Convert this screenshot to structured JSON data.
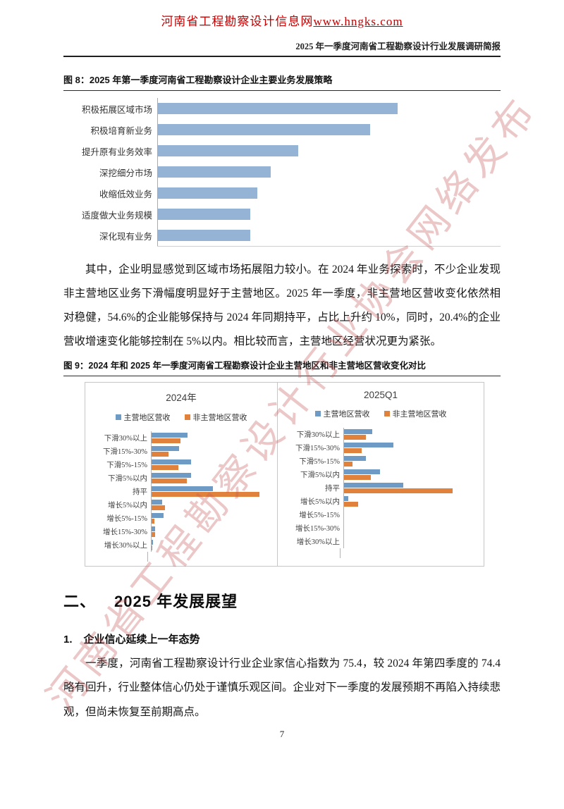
{
  "header": {
    "site_name": "河南省工程勘察设计信息网",
    "site_url": "www.hngks.com",
    "doc_title": "2025 年一季度河南省工程勘察设计行业发展调研简报"
  },
  "figure8": {
    "caption": "图 8：2025 年第一季度河南省工程勘察设计企业主要业务发展策略"
  },
  "figure9": {
    "caption": "图 9：2024 年和 2025 年一季度河南省工程勘察设计企业主营地区和非主营地区营收变化对比"
  },
  "paragraphs": {
    "p1": "其中，企业明显感觉到区域市场拓展阻力较小。在 2024 年业务探索时，不少企业发现非主营地区业务下滑幅度明显好于主营地区。2025 年一季度，非主营地区营收变化依然相对稳健，54.6%的企业能够保持与 2024 年同期持平，占比上升约 10%，同时，20.4%的企业营收增速变化能够控制在 5%以内。相比较而言，主营地区经营状况更为紧张。",
    "p2": "一季度，河南省工程勘察设计行业企业家信心指数为 75.4，较 2024 年第四季度的 74.4 略有回升，行业整体信心仍处于谨慎乐观区间。企业对下一季度的发展预期不再陷入持续悲观，但尚未恢复至前期高点。"
  },
  "section2": {
    "number": "二、",
    "title": "2025 年发展展望"
  },
  "subsection1": {
    "number": "1.",
    "title": "企业信心延续上一年态势"
  },
  "watermark_text": "河南省工程勘察设计行业协会网络发布",
  "page": {
    "number": "7"
  },
  "colors": {
    "header_red": "#c00000",
    "watermark_pink": "rgba(197,92,92,0.34)",
    "fig8_bar_blue": "#95b4d5",
    "series_blue": "#6d9bc6",
    "series_orange": "#e0813c"
  },
  "chart_data": [
    {
      "id": "fig8",
      "type": "bar",
      "orientation": "horizontal",
      "title": "图 8：2025 年第一季度河南省工程勘察设计企业主要业务发展策略",
      "categories": [
        "积极拓展区域市场",
        "积极培育新业务",
        "提升原有业务效率",
        "深挖细分市场",
        "收缩低效业务",
        "适度做大业务规模",
        "深化现有业务"
      ],
      "values": [
        70,
        62,
        41,
        33,
        29,
        27,
        27
      ],
      "units": "estimated relative length, % of plot width (axis unlabeled in source)",
      "bar_color": "#95b4d5",
      "xlabel": "",
      "ylabel": "",
      "xlim": [
        0,
        100
      ],
      "grid": false,
      "legend": "none"
    },
    {
      "id": "fig9",
      "type": "bar",
      "orientation": "horizontal",
      "title": "图 9：2024 年和 2025 年一季度河南省工程勘察设计企业主营地区和非主营地区营收变化对比",
      "categories": [
        "下滑30%以上",
        "下滑15%-30%",
        "下滑5%-15%",
        "下滑5%以内",
        "持平",
        "增长5%以内",
        "增长5%-15%",
        "增长15%-30%",
        "增长30%以上"
      ],
      "legend_labels": [
        "主营地区营收",
        "非主营地区营收"
      ],
      "legend_position": "top-center",
      "units": "estimated % of enterprises (values read from bar lengths; 54.6% and 20.4% anchored by body text)",
      "grid": false,
      "panels": [
        {
          "title": "2024年",
          "xmax": 52,
          "series": [
            {
              "name": "主营地区营收",
              "color": "#6d9bc6",
              "values": [
                15,
                11.5,
                16.5,
                16.5,
                25.5,
                4.5,
                5,
                1.5,
                0.6
              ]
            },
            {
              "name": "非主营地区营收",
              "color": "#e0813c",
              "values": [
                12,
                7,
                11,
                14.5,
                44.6,
                5.5,
                1.2,
                1.5,
                0.3
              ]
            }
          ]
        },
        {
          "title": "2025Q1",
          "xmax": 70,
          "series": [
            {
              "name": "主营地区营收",
              "color": "#6d9bc6",
              "values": [
                14,
                24.7,
                11,
                18,
                29.6,
                2,
                0,
                0,
                0
              ]
            },
            {
              "name": "非主营地区营收",
              "color": "#e0813c",
              "values": [
                11,
                8.7,
                4.2,
                13.4,
                54.6,
                7,
                0,
                0,
                0
              ]
            }
          ]
        }
      ]
    }
  ]
}
